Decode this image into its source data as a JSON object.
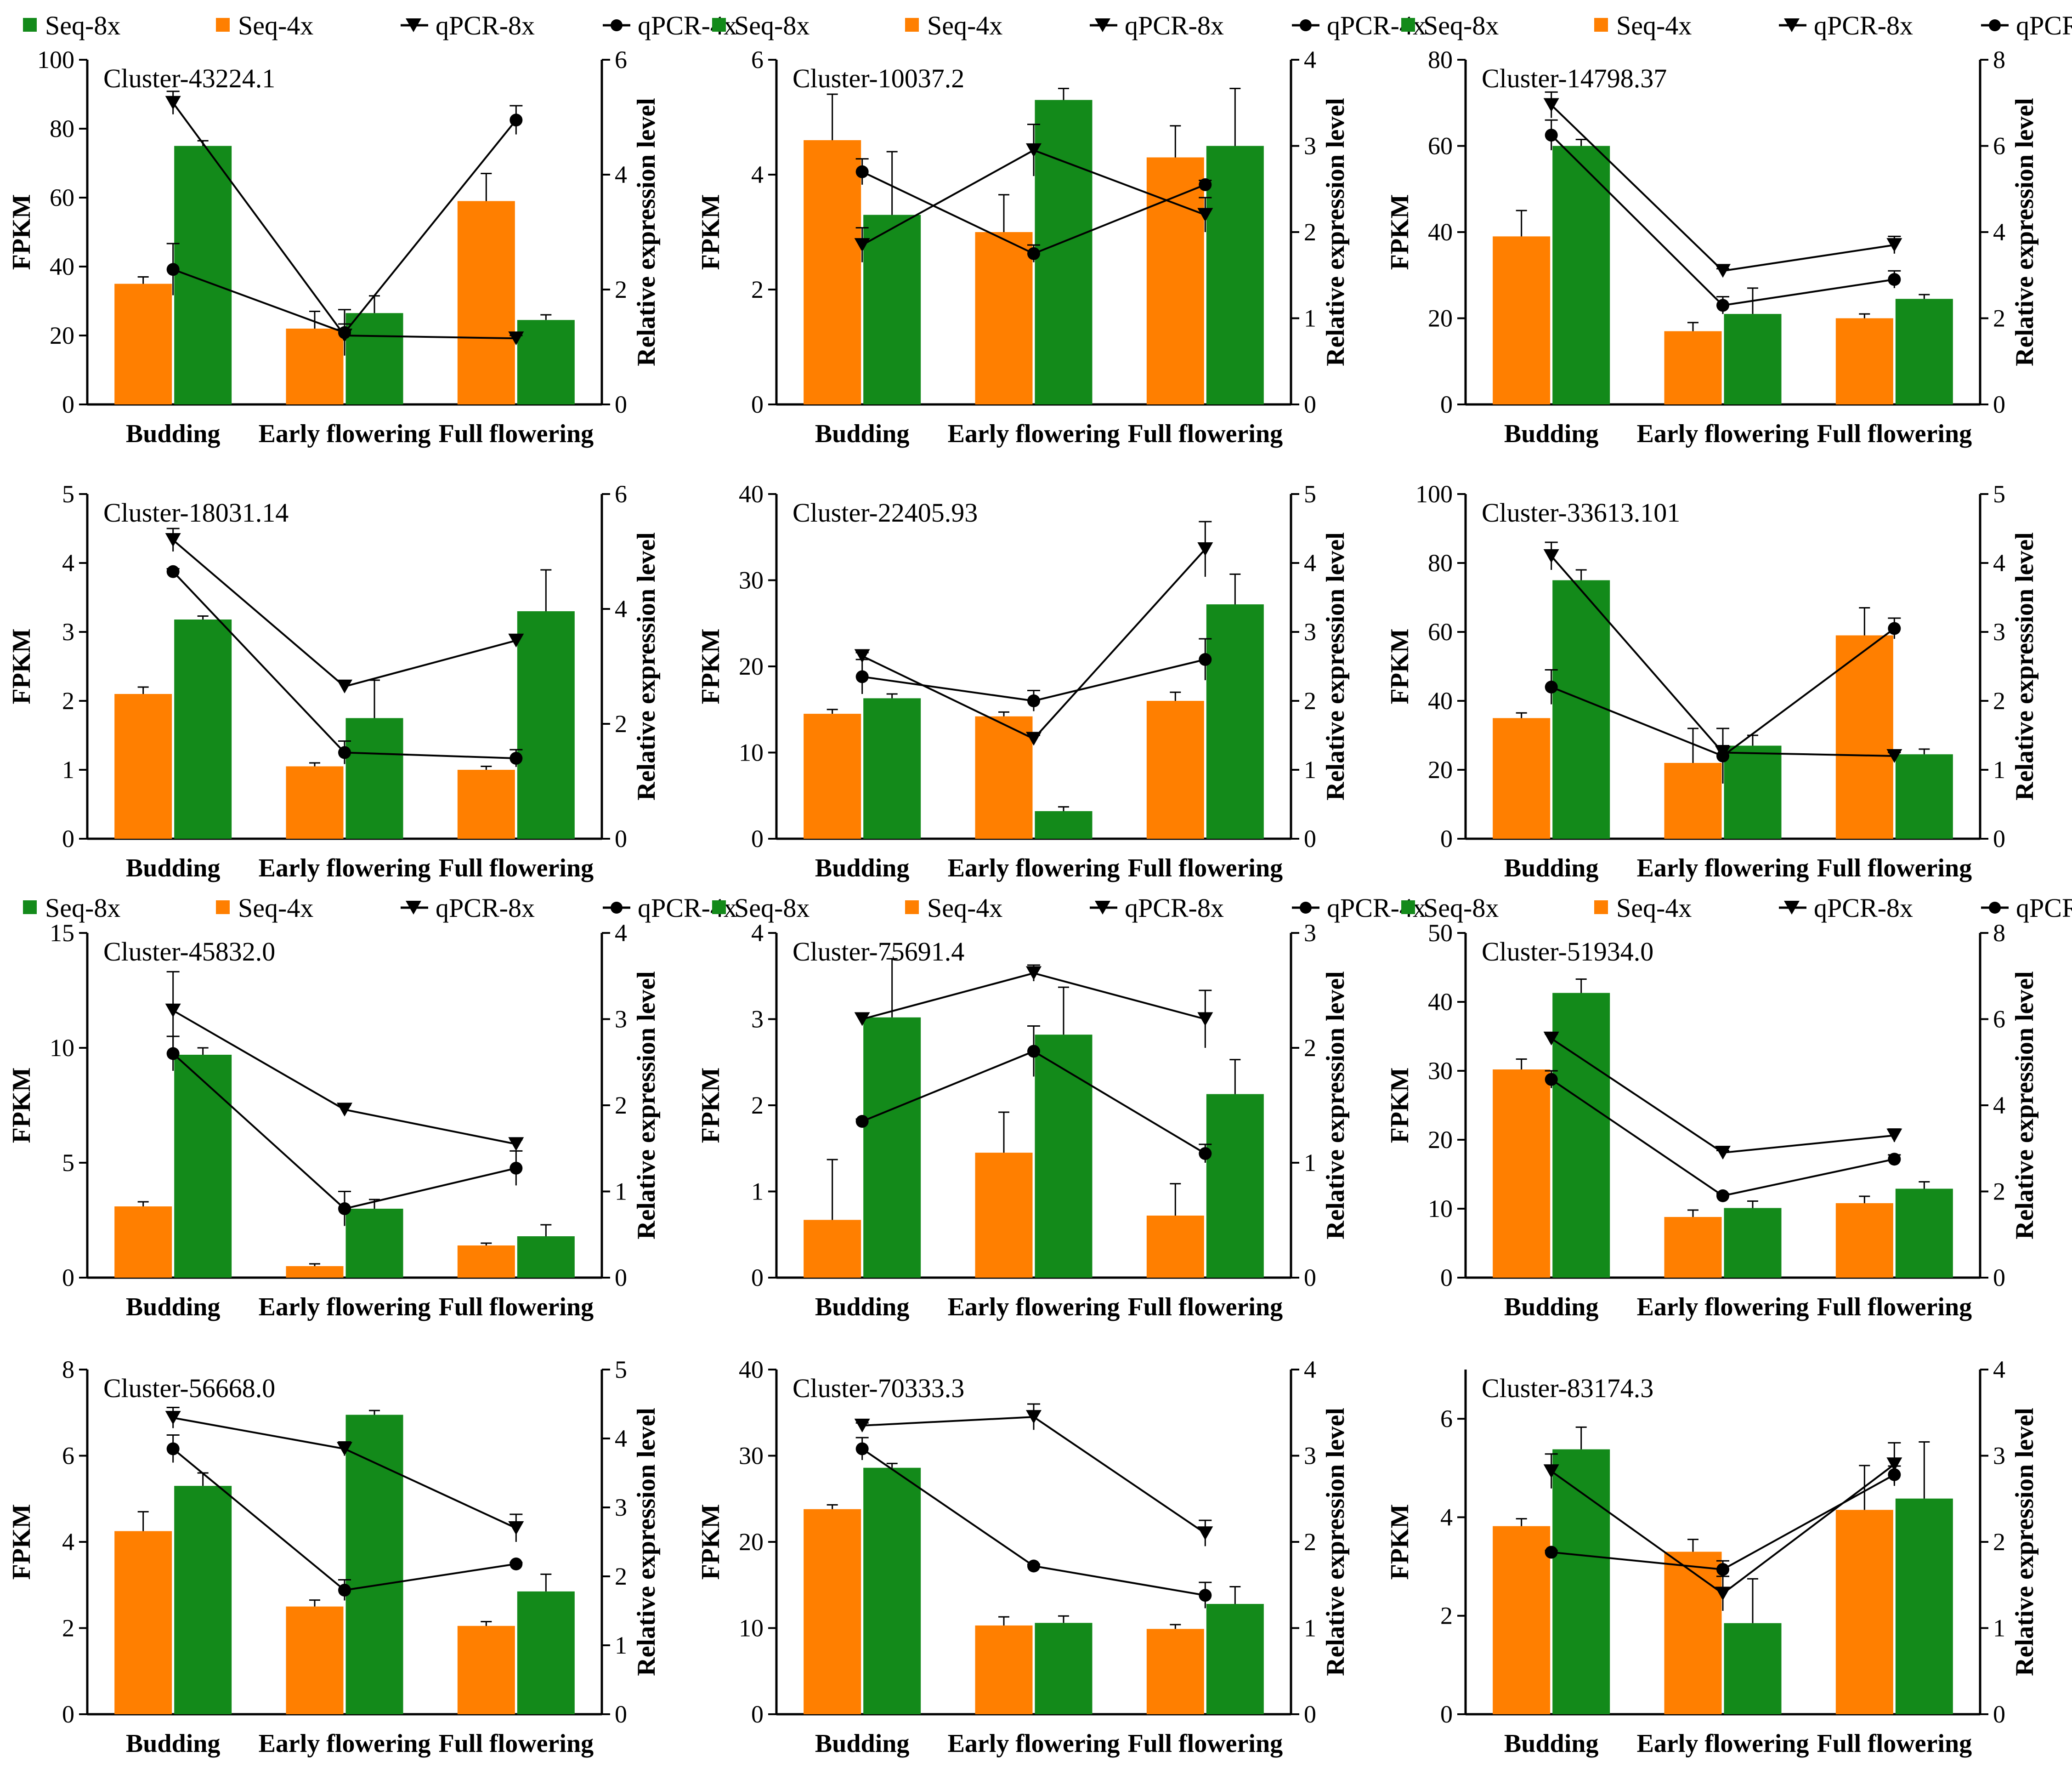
{
  "legend": [
    {
      "name": "Seq-8x",
      "kind": "bar",
      "color": "#138a1a"
    },
    {
      "name": "Seq-4x",
      "kind": "bar",
      "color": "#ff7f00"
    },
    {
      "name": "qPCR-8x",
      "kind": "line-triangle",
      "color": "#000000"
    },
    {
      "name": "qPCR-4x",
      "kind": "line-circle",
      "color": "#000000"
    }
  ],
  "colors": {
    "seq8x": "#138a1a",
    "seq4x": "#ff7f00",
    "qpcr": "#000000"
  },
  "chart_data": [
    {
      "type": "bar",
      "title": "Cluster-43224.1",
      "categories": [
        "Budding",
        "Early flowering",
        "Full flowering"
      ],
      "ylabel": "FPKM",
      "y2label": "Relative expression level",
      "ylim": [
        0,
        100
      ],
      "yticks": [
        0,
        20,
        40,
        60,
        80,
        100
      ],
      "y2lim": [
        0,
        6
      ],
      "y2ticks": [
        0,
        2,
        4,
        6
      ],
      "series": [
        {
          "name": "Seq-4x",
          "axis": "left",
          "values": [
            35,
            22,
            59
          ],
          "errors": [
            2,
            5,
            8
          ]
        },
        {
          "name": "Seq-8x",
          "axis": "left",
          "values": [
            75,
            26.5,
            24.5
          ],
          "errors": [
            1.5,
            5,
            1.5
          ]
        },
        {
          "name": "qPCR-8x",
          "axis": "right",
          "values": [
            5.25,
            1.2,
            1.15
          ],
          "errors": [
            0.2,
            0.2,
            0.05
          ]
        },
        {
          "name": "qPCR-4x",
          "axis": "right",
          "values": [
            2.35,
            1.25,
            4.95
          ],
          "errors": [
            0.45,
            0.4,
            0.25
          ]
        }
      ]
    },
    {
      "type": "bar",
      "title": "Cluster-10037.2",
      "categories": [
        "Budding",
        "Early flowering",
        "Full flowering"
      ],
      "ylabel": "FPKM",
      "y2label": "Relative expression level",
      "ylim": [
        0,
        6
      ],
      "yticks": [
        0,
        2,
        4,
        6
      ],
      "y2lim": [
        0,
        4
      ],
      "y2ticks": [
        0,
        1,
        2,
        3,
        4
      ],
      "series": [
        {
          "name": "Seq-4x",
          "axis": "left",
          "values": [
            4.6,
            3.0,
            4.3
          ],
          "errors": [
            0.8,
            0.65,
            0.55
          ]
        },
        {
          "name": "Seq-8x",
          "axis": "left",
          "values": [
            3.3,
            5.3,
            4.5
          ],
          "errors": [
            1.1,
            0.2,
            1.0
          ]
        },
        {
          "name": "qPCR-8x",
          "axis": "right",
          "values": [
            1.85,
            2.95,
            2.2
          ],
          "errors": [
            0.2,
            0.3,
            0.2
          ]
        },
        {
          "name": "qPCR-4x",
          "axis": "right",
          "values": [
            2.7,
            1.75,
            2.55
          ],
          "errors": [
            0.15,
            0.1,
            0.05
          ]
        }
      ]
    },
    {
      "type": "bar",
      "title": "Cluster-14798.37",
      "categories": [
        "Budding",
        "Early flowering",
        "Full flowering"
      ],
      "ylabel": "FPKM",
      "y2label": "Relative expression level",
      "ylim": [
        0,
        80
      ],
      "yticks": [
        0,
        20,
        40,
        60,
        80
      ],
      "y2lim": [
        0,
        8
      ],
      "y2ticks": [
        0,
        2,
        4,
        6,
        8
      ],
      "series": [
        {
          "name": "Seq-4x",
          "axis": "left",
          "values": [
            39,
            17,
            20
          ],
          "errors": [
            6,
            2,
            1
          ]
        },
        {
          "name": "Seq-8x",
          "axis": "left",
          "values": [
            60,
            21,
            24.5
          ],
          "errors": [
            1.5,
            6,
            1
          ]
        },
        {
          "name": "qPCR-8x",
          "axis": "right",
          "values": [
            6.95,
            3.1,
            3.7
          ],
          "errors": [
            0.3,
            0.05,
            0.2
          ]
        },
        {
          "name": "qPCR-4x",
          "axis": "right",
          "values": [
            6.25,
            2.3,
            2.9
          ],
          "errors": [
            0.35,
            0.2,
            0.2
          ]
        }
      ]
    },
    {
      "type": "bar",
      "title": "Cluster-18031.14",
      "categories": [
        "Budding",
        "Early flowering",
        "Full flowering"
      ],
      "ylabel": "FPKM",
      "y2label": "Relative expression level",
      "ylim": [
        0,
        5
      ],
      "yticks": [
        0,
        1,
        2,
        3,
        4,
        5
      ],
      "y2lim": [
        0,
        6
      ],
      "y2ticks": [
        0,
        2,
        4,
        6
      ],
      "series": [
        {
          "name": "Seq-4x",
          "axis": "left",
          "values": [
            2.1,
            1.05,
            1.0
          ],
          "errors": [
            0.1,
            0.05,
            0.05
          ]
        },
        {
          "name": "Seq-8x",
          "axis": "left",
          "values": [
            3.18,
            1.75,
            3.3
          ],
          "errors": [
            0.05,
            0.55,
            0.6
          ]
        },
        {
          "name": "qPCR-8x",
          "axis": "right",
          "values": [
            5.2,
            2.65,
            3.45
          ],
          "errors": [
            0.2,
            0.1,
            0.1
          ]
        },
        {
          "name": "qPCR-4x",
          "axis": "right",
          "values": [
            4.65,
            1.5,
            1.4
          ],
          "errors": [
            0.05,
            0.2,
            0.15
          ]
        }
      ]
    },
    {
      "type": "bar",
      "title": "Cluster-22405.93",
      "categories": [
        "Budding",
        "Early flowering",
        "Full flowering"
      ],
      "ylabel": "FPKM",
      "y2label": "Relative expression level",
      "ylim": [
        0,
        40
      ],
      "yticks": [
        0,
        10,
        20,
        30,
        40
      ],
      "y2lim": [
        0,
        5
      ],
      "y2ticks": [
        0,
        1,
        2,
        3,
        4,
        5
      ],
      "series": [
        {
          "name": "Seq-4x",
          "axis": "left",
          "values": [
            14.5,
            14.2,
            16
          ],
          "errors": [
            0.5,
            0.5,
            1
          ]
        },
        {
          "name": "Seq-8x",
          "axis": "left",
          "values": [
            16.3,
            3.2,
            27.2
          ],
          "errors": [
            0.5,
            0.5,
            3.5
          ]
        },
        {
          "name": "qPCR-8x",
          "axis": "right",
          "values": [
            2.65,
            1.45,
            4.2
          ],
          "errors": [
            0.05,
            0.05,
            0.4
          ]
        },
        {
          "name": "qPCR-4x",
          "axis": "right",
          "values": [
            2.35,
            2.0,
            2.6
          ],
          "errors": [
            0.25,
            0.15,
            0.3
          ]
        }
      ]
    },
    {
      "type": "bar",
      "title": "Cluster-33613.101",
      "categories": [
        "Budding",
        "Early flowering",
        "Full flowering"
      ],
      "ylabel": "FPKM",
      "y2label": "Relative expression level",
      "ylim": [
        0,
        100
      ],
      "yticks": [
        0,
        20,
        40,
        60,
        80,
        100
      ],
      "y2lim": [
        0,
        5
      ],
      "y2ticks": [
        0,
        1,
        2,
        3,
        4,
        5
      ],
      "series": [
        {
          "name": "Seq-4x",
          "axis": "left",
          "values": [
            35,
            22,
            59
          ],
          "errors": [
            1.5,
            10,
            8
          ]
        },
        {
          "name": "Seq-8x",
          "axis": "left",
          "values": [
            75,
            27,
            24.5
          ],
          "errors": [
            3,
            3,
            1.5
          ]
        },
        {
          "name": "qPCR-8x",
          "axis": "right",
          "values": [
            4.1,
            1.25,
            1.2
          ],
          "errors": [
            0.2,
            0.1,
            0.05
          ]
        },
        {
          "name": "qPCR-4x",
          "axis": "right",
          "values": [
            2.2,
            1.2,
            3.05
          ],
          "errors": [
            0.25,
            0.4,
            0.15
          ]
        }
      ]
    },
    {
      "type": "bar",
      "title": "Cluster-45832.0",
      "categories": [
        "Budding",
        "Early flowering",
        "Full flowering"
      ],
      "ylabel": "FPKM",
      "y2label": "Relative expression level",
      "ylim": [
        0,
        15
      ],
      "yticks": [
        0,
        5,
        10,
        15
      ],
      "y2lim": [
        0,
        4
      ],
      "y2ticks": [
        0,
        1,
        2,
        3,
        4
      ],
      "series": [
        {
          "name": "Seq-4x",
          "axis": "left",
          "values": [
            3.1,
            0.5,
            1.4
          ],
          "errors": [
            0.2,
            0.1,
            0.1
          ]
        },
        {
          "name": "Seq-8x",
          "axis": "left",
          "values": [
            9.7,
            3.0,
            1.8
          ],
          "errors": [
            0.3,
            0.4,
            0.5
          ]
        },
        {
          "name": "qPCR-8x",
          "axis": "right",
          "values": [
            3.1,
            1.95,
            1.55
          ],
          "errors": [
            0.45,
            0.05,
            0.05
          ]
        },
        {
          "name": "qPCR-4x",
          "axis": "right",
          "values": [
            2.6,
            0.8,
            1.27
          ],
          "errors": [
            0.2,
            0.2,
            0.2
          ]
        }
      ]
    },
    {
      "type": "bar",
      "title": "Cluster-75691.4",
      "categories": [
        "Budding",
        "Early flowering",
        "Full flowering"
      ],
      "ylabel": "FPKM",
      "y2label": "Relative expression level",
      "ylim": [
        0,
        4
      ],
      "yticks": [
        0,
        1,
        2,
        3,
        4
      ],
      "y2lim": [
        0,
        3
      ],
      "y2ticks": [
        0,
        1,
        2,
        3
      ],
      "series": [
        {
          "name": "Seq-4x",
          "axis": "left",
          "values": [
            0.67,
            1.45,
            0.72
          ],
          "errors": [
            0.7,
            0.47,
            0.37
          ]
        },
        {
          "name": "Seq-8x",
          "axis": "left",
          "values": [
            3.02,
            2.82,
            2.13
          ],
          "errors": [
            0.68,
            0.55,
            0.4
          ]
        },
        {
          "name": "qPCR-8x",
          "axis": "right",
          "values": [
            2.25,
            2.65,
            2.25
          ],
          "errors": [
            0.05,
            0.07,
            0.25
          ]
        },
        {
          "name": "qPCR-4x",
          "axis": "right",
          "values": [
            1.36,
            1.97,
            1.08
          ],
          "errors": [
            0.02,
            0.22,
            0.08
          ]
        }
      ]
    },
    {
      "type": "bar",
      "title": "Cluster-51934.0",
      "categories": [
        "Budding",
        "Early flowering",
        "Full flowering"
      ],
      "ylabel": "FPKM",
      "y2label": "Relative expression level",
      "ylim": [
        0,
        50
      ],
      "yticks": [
        0,
        10,
        20,
        30,
        40,
        50
      ],
      "y2lim": [
        0,
        8
      ],
      "y2ticks": [
        0,
        2,
        4,
        6,
        8
      ],
      "series": [
        {
          "name": "Seq-4x",
          "axis": "left",
          "values": [
            30.2,
            8.8,
            10.8
          ],
          "errors": [
            1.5,
            1,
            1
          ]
        },
        {
          "name": "Seq-8x",
          "axis": "left",
          "values": [
            41.3,
            10.1,
            12.9
          ],
          "errors": [
            2,
            1,
            1
          ]
        },
        {
          "name": "qPCR-8x",
          "axis": "right",
          "values": [
            5.55,
            2.9,
            3.3
          ],
          "errors": [
            0.1,
            0.05,
            0.15
          ]
        },
        {
          "name": "qPCR-4x",
          "axis": "right",
          "values": [
            4.6,
            1.9,
            2.75
          ],
          "errors": [
            0.2,
            0.05,
            0.1
          ]
        }
      ]
    },
    {
      "type": "bar",
      "title": "Cluster-56668.0",
      "categories": [
        "Budding",
        "Early flowering",
        "Full flowering"
      ],
      "ylabel": "FPKM",
      "y2label": "Relative expression level",
      "ylim": [
        0,
        8
      ],
      "yticks": [
        0,
        2,
        4,
        6,
        8
      ],
      "y2lim": [
        0,
        5
      ],
      "y2ticks": [
        0,
        1,
        2,
        3,
        4,
        5
      ],
      "series": [
        {
          "name": "Seq-4x",
          "axis": "left",
          "values": [
            4.25,
            2.5,
            2.05
          ],
          "errors": [
            0.45,
            0.15,
            0.1
          ]
        },
        {
          "name": "Seq-8x",
          "axis": "left",
          "values": [
            5.3,
            6.95,
            2.85
          ],
          "errors": [
            0.3,
            0.1,
            0.4
          ]
        },
        {
          "name": "qPCR-8x",
          "axis": "right",
          "values": [
            4.3,
            3.85,
            2.7
          ],
          "errors": [
            0.15,
            0.1,
            0.2
          ]
        },
        {
          "name": "qPCR-4x",
          "axis": "right",
          "values": [
            3.85,
            1.8,
            2.18
          ],
          "errors": [
            0.2,
            0.15,
            0.02
          ]
        }
      ]
    },
    {
      "type": "bar",
      "title": "Cluster-70333.3",
      "categories": [
        "Budding",
        "Early flowering",
        "Full flowering"
      ],
      "ylabel": "FPKM",
      "y2label": "Relative expression level",
      "ylim": [
        0,
        40
      ],
      "yticks": [
        0,
        10,
        20,
        30,
        40
      ],
      "y2lim": [
        0,
        4
      ],
      "y2ticks": [
        0,
        1,
        2,
        3,
        4
      ],
      "series": [
        {
          "name": "Seq-4x",
          "axis": "left",
          "values": [
            23.8,
            10.3,
            9.9
          ],
          "errors": [
            0.5,
            1,
            0.5
          ]
        },
        {
          "name": "Seq-8x",
          "axis": "left",
          "values": [
            28.6,
            10.6,
            12.8
          ],
          "errors": [
            0.5,
            0.8,
            2
          ]
        },
        {
          "name": "qPCR-8x",
          "axis": "right",
          "values": [
            3.35,
            3.45,
            2.1
          ],
          "errors": [
            0.03,
            0.15,
            0.15
          ]
        },
        {
          "name": "qPCR-4x",
          "axis": "right",
          "values": [
            3.08,
            1.72,
            1.38
          ],
          "errors": [
            0.13,
            0.02,
            0.15
          ]
        }
      ]
    },
    {
      "type": "bar",
      "title": "Cluster-83174.3",
      "categories": [
        "Budding",
        "Early flowering",
        "Full flowering"
      ],
      "ylabel": "FPKM",
      "y2label": "Relative expression level",
      "ylim": [
        0,
        7
      ],
      "yticks": [
        0,
        2,
        4,
        6
      ],
      "y2lim": [
        0,
        4
      ],
      "y2ticks": [
        0,
        1,
        2,
        3,
        4
      ],
      "series": [
        {
          "name": "Seq-4x",
          "axis": "left",
          "values": [
            3.82,
            3.3,
            4.15
          ],
          "errors": [
            0.15,
            0.25,
            0.9
          ]
        },
        {
          "name": "Seq-8x",
          "axis": "left",
          "values": [
            5.38,
            1.85,
            4.38
          ],
          "errors": [
            0.45,
            0.9,
            1.15
          ]
        },
        {
          "name": "qPCR-8x",
          "axis": "right",
          "values": [
            2.82,
            1.4,
            2.9
          ],
          "errors": [
            0.2,
            0.2,
            0.25
          ]
        },
        {
          "name": "qPCR-4x",
          "axis": "right",
          "values": [
            1.88,
            1.68,
            2.78
          ],
          "errors": [
            0.02,
            0.1,
            0.1
          ]
        }
      ]
    }
  ]
}
